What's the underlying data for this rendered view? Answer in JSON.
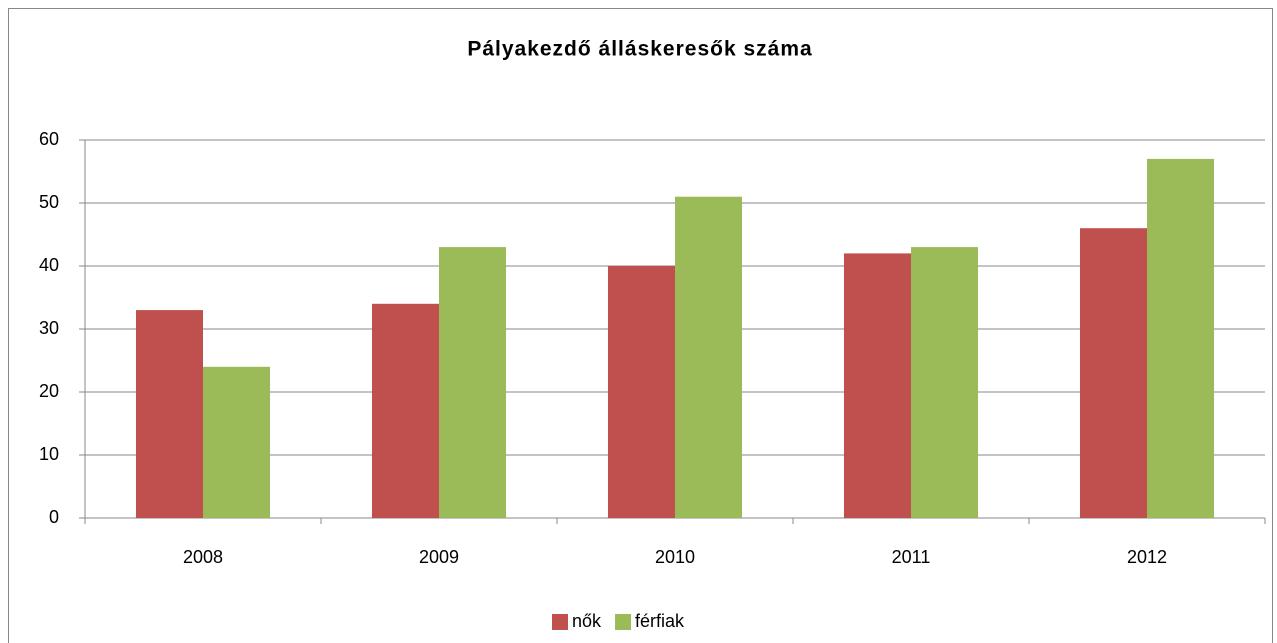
{
  "chart_data": {
    "type": "bar",
    "title": "Pályakezdő álláskeresők száma",
    "categories": [
      "2008",
      "2009",
      "2010",
      "2011",
      "2012"
    ],
    "series": [
      {
        "name": "nők",
        "color": "#c0504d",
        "values": [
          33,
          34,
          40,
          42,
          46
        ]
      },
      {
        "name": "férfiak",
        "color": "#9bbb59",
        "values": [
          24,
          43,
          51,
          43,
          57
        ]
      }
    ],
    "ylim": [
      0,
      60
    ],
    "yticks": [
      0,
      10,
      20,
      30,
      40,
      50,
      60
    ],
    "grid": true,
    "legend": "bottom"
  }
}
